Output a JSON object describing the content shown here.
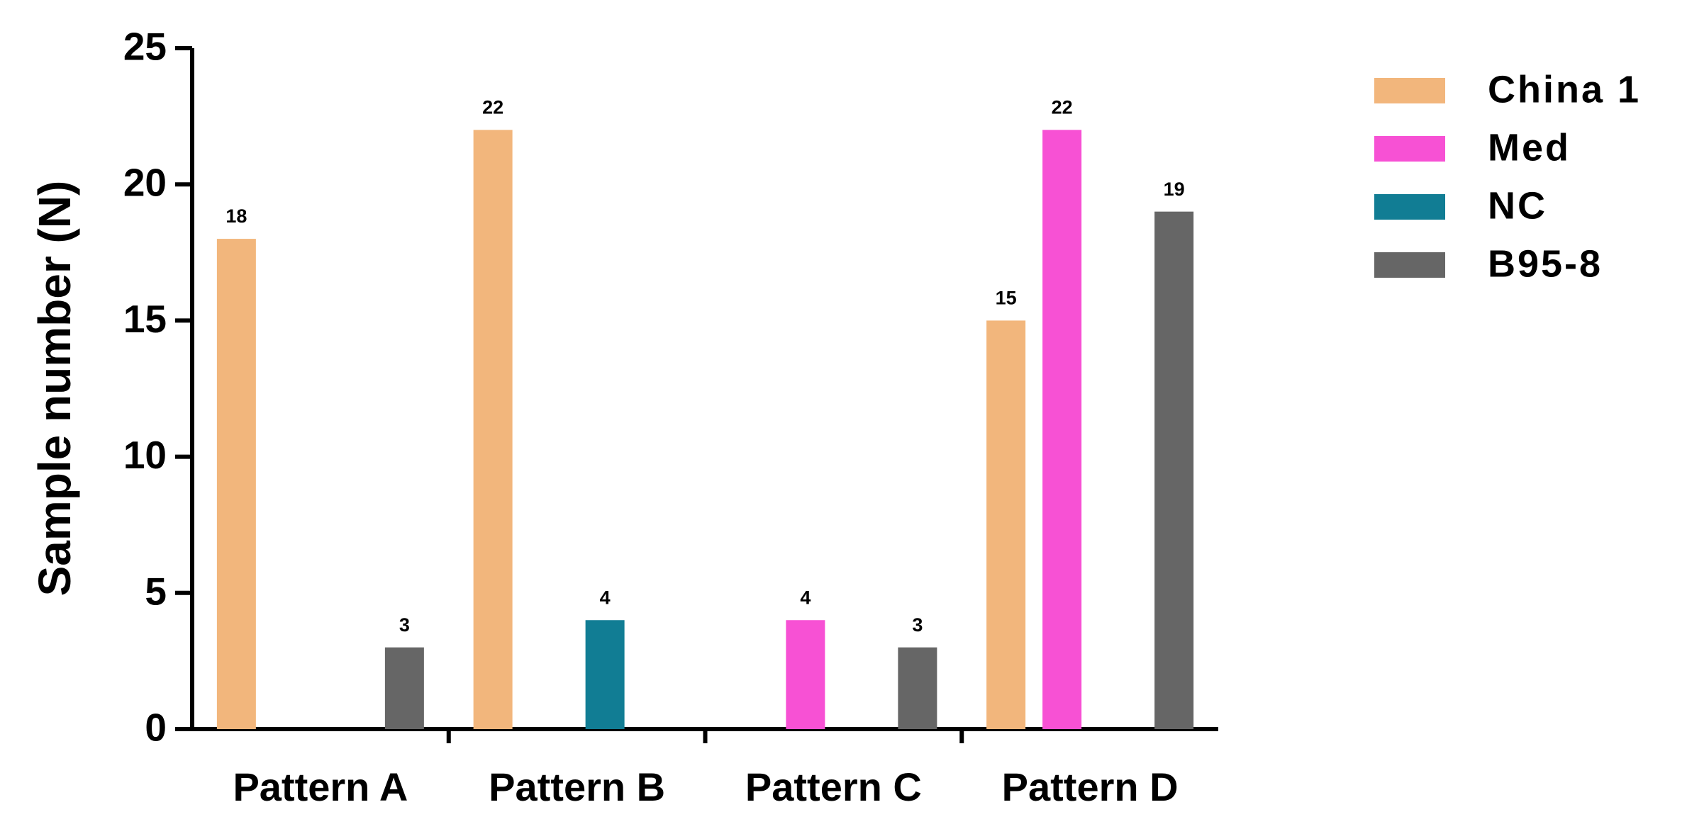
{
  "chart_data": {
    "type": "bar",
    "y_label": "Sample number (N)",
    "categories": [
      "Pattern A",
      "Pattern B",
      "Pattern C",
      "Pattern D"
    ],
    "series": [
      {
        "name": "China 1",
        "color": "#f2b67c",
        "values": [
          18,
          22,
          null,
          15
        ]
      },
      {
        "name": "Med",
        "color": "#f751d4",
        "values": [
          null,
          null,
          4,
          22
        ]
      },
      {
        "name": "NC",
        "color": "#117d94",
        "values": [
          null,
          4,
          null,
          null
        ]
      },
      {
        "name": "B95-8",
        "color": "#666666",
        "values": [
          3,
          null,
          3,
          19
        ]
      }
    ],
    "ylim": [
      0,
      25
    ],
    "yticks": [
      0,
      5,
      10,
      15,
      20,
      25
    ],
    "legend": "right"
  }
}
